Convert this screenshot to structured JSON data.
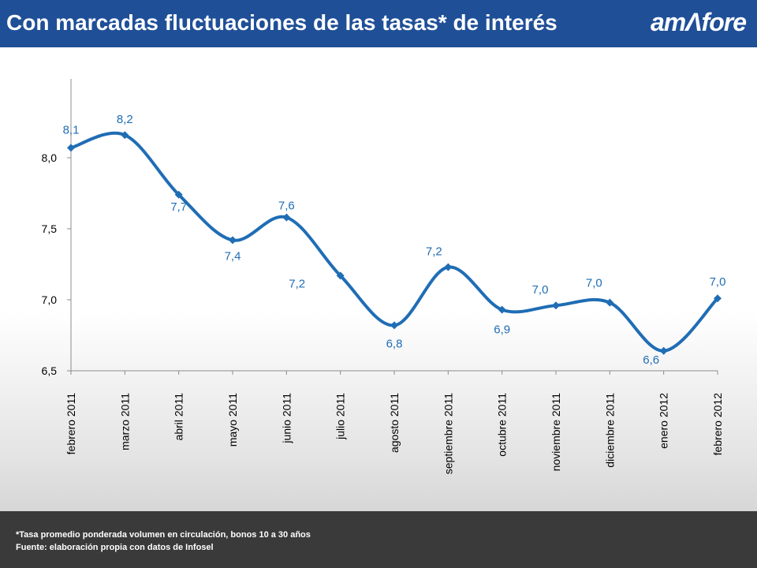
{
  "header": {
    "title": "Con marcadas fluctuaciones de las tasas* de interés",
    "logo_text": "amΛfore",
    "background_color": "#1f4f97"
  },
  "chart_data": {
    "type": "line",
    "title": "",
    "xlabel": "",
    "ylabel": "",
    "categories": [
      "febrero 2011",
      "marzo 2011",
      "abril 2011",
      "mayo 2011",
      "junio 2011",
      "julio  2011",
      "agosto 2011",
      "septiembre 2011",
      "octubre 2011",
      "noviembre 2011",
      "diciembre  2011",
      "enero 2012",
      "febrero 2012"
    ],
    "values": [
      8.07,
      8.16,
      7.74,
      7.42,
      7.58,
      7.17,
      6.82,
      7.23,
      6.93,
      6.96,
      6.98,
      6.64,
      7.01
    ],
    "data_labels": [
      "8,1",
      "8,2",
      "7,7",
      "7,4",
      "7,6",
      "7,2",
      "6,8",
      "7,2",
      "6,9",
      "7,0",
      "7,0",
      "6,6",
      "7,0"
    ],
    "ylim": [
      6.5,
      8.5
    ],
    "y_ticks": [
      6.5,
      7.0,
      7.5,
      8.0
    ],
    "y_tick_labels": [
      "6,5",
      "7,0",
      "7,5",
      "8,0"
    ],
    "grid": false,
    "legend": "none",
    "series_color": "#1f6db5"
  },
  "footer": {
    "note": "*Tasa promedio ponderada volumen en circulación, bonos 10 a 30 años",
    "source": "Fuente: elaboración propia con datos de Infosel"
  }
}
